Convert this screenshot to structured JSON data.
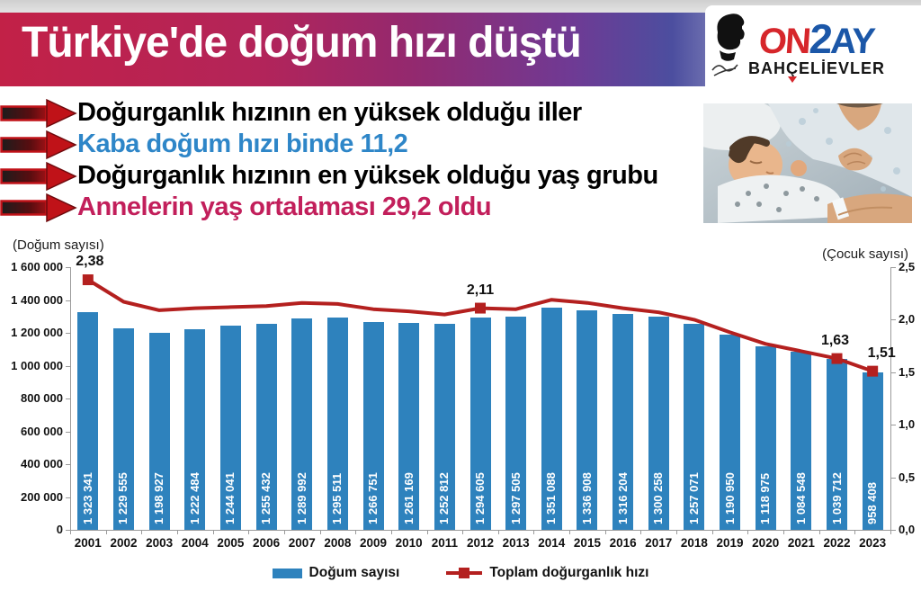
{
  "header": {
    "title": "Türkiye'de doğum hızı düştü",
    "gradient_left": "#c22147",
    "gradient_right": "#4c4e9f"
  },
  "logo": {
    "part1": "ON",
    "part2": "2",
    "part3": "AY",
    "line2_part1": "BAH",
    "line2_part2": "Ç",
    "line2_part3": "ELİEVLER",
    "red": "#d6262b",
    "blue": "#1b57a8"
  },
  "bullets": {
    "items": [
      {
        "text": "Doğurganlık hızının en yüksek olduğu iller",
        "color": "#000000"
      },
      {
        "text": "Kaba doğum hızı binde 11,2",
        "color": "#2e86c8"
      },
      {
        "text": "Doğurganlık hızının en yüksek olduğu yaş grubu",
        "color": "#000000"
      },
      {
        "text": "Annelerin yaş ortalaması 29,2 oldu",
        "color": "#c21f5b"
      }
    ]
  },
  "chart_data": {
    "type": "bar",
    "combo": "bar+line",
    "left_axis_label": "(Doğum sayısı)",
    "right_axis_label": "(Çocuk sayısı)",
    "categories": [
      "2001",
      "2002",
      "2003",
      "2004",
      "2005",
      "2006",
      "2007",
      "2008",
      "2009",
      "2010",
      "2011",
      "2012",
      "2013",
      "2014",
      "2015",
      "2016",
      "2017",
      "2018",
      "2019",
      "2020",
      "2021",
      "2022",
      "2023"
    ],
    "series": [
      {
        "name": "Doğum sayısı",
        "type": "bar",
        "axis": "left",
        "color": "#2e82bd",
        "values": [
          1323341,
          1229555,
          1198927,
          1222484,
          1244041,
          1255432,
          1289992,
          1295511,
          1266751,
          1261169,
          1252812,
          1294605,
          1297505,
          1351088,
          1336908,
          1316204,
          1300258,
          1257071,
          1190950,
          1118975,
          1084548,
          1039712,
          958408
        ],
        "bar_labels": [
          "1 323 341",
          "1 229 555",
          "1 198 927",
          "1 222 484",
          "1 244 041",
          "1 255 432",
          "1 289 992",
          "1 295 511",
          "1 266 751",
          "1 261 169",
          "1 252 812",
          "1 294 605",
          "1 297 505",
          "1 351 088",
          "1 336 908",
          "1 316 204",
          "1 300 258",
          "1 257 071",
          "1 190 950",
          "1 118 975",
          "1 084 548",
          "1 039 712",
          "958 408"
        ]
      },
      {
        "name": "Toplam doğurganlık hızı",
        "type": "line",
        "axis": "right",
        "color": "#b4201f",
        "values": [
          2.38,
          2.17,
          2.09,
          2.11,
          2.12,
          2.13,
          2.16,
          2.15,
          2.1,
          2.08,
          2.05,
          2.11,
          2.1,
          2.19,
          2.16,
          2.11,
          2.07,
          2.0,
          1.88,
          1.77,
          1.7,
          1.63,
          1.51
        ],
        "point_labels": [
          {
            "i": 0,
            "text": "2,38",
            "dx": 2
          },
          {
            "i": 11,
            "text": "2,11",
            "dx": 0
          },
          {
            "i": 21,
            "text": "1,63",
            "dx": -2
          },
          {
            "i": 22,
            "text": "1,51",
            "dx": 10
          }
        ]
      }
    ],
    "left_axis": {
      "min": 0,
      "max": 1600000,
      "ticks": [
        "1 600 000",
        "1 400 000",
        "1 200 000",
        "1 000 000",
        "800 000",
        "600 000",
        "400 000",
        "200 000",
        "0"
      ]
    },
    "right_axis": {
      "min": 0,
      "max": 2.5,
      "ticks": [
        "2,5",
        "2,0",
        "1,5",
        "1,0",
        "0,5",
        "0,0"
      ]
    },
    "legend": [
      {
        "label": "Doğum sayısı",
        "type": "bar",
        "color": "#2e82bd"
      },
      {
        "label": "Toplam doğurganlık hızı",
        "type": "line",
        "color": "#b4201f"
      }
    ],
    "legend_position": "bottom",
    "grid": false
  }
}
